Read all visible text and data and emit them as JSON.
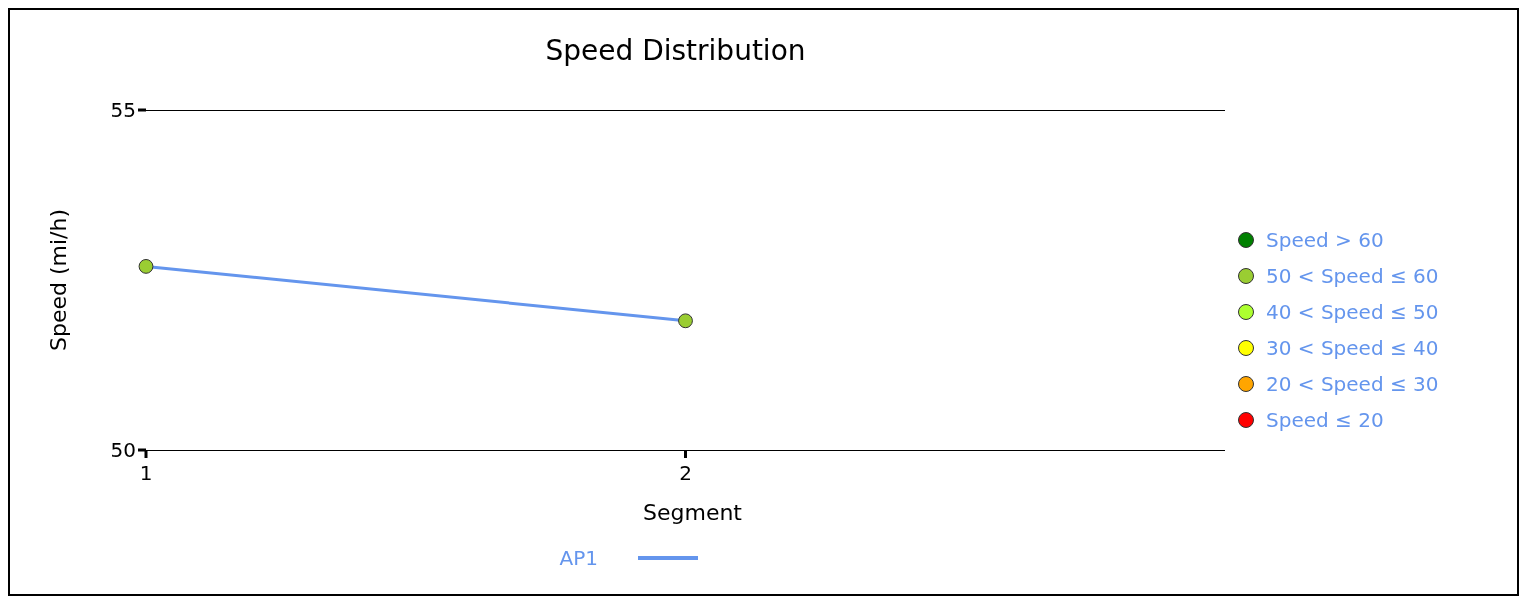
{
  "chart_data": {
    "type": "line",
    "title": "Speed Distribution",
    "xlabel": "Segment",
    "ylabel": "Speed (mi/h)",
    "x": [
      1,
      2
    ],
    "xlim": [
      1,
      3
    ],
    "xticks": [
      1,
      2
    ],
    "ylim": [
      50,
      55
    ],
    "yticks": [
      50,
      55
    ],
    "legend": "right",
    "marker": "circle",
    "series": [
      {
        "name": "AP1",
        "color": "#6495ed",
        "colors": [
          "#9acd32",
          "#9acd32"
        ],
        "values": [
          52.7,
          51.9
        ]
      },
      {
        "name": "Speed > 60",
        "type": "scatter",
        "color": "#008000",
        "values": [
          null,
          null
        ]
      },
      {
        "name": "50 < Speed ≤ 60",
        "type": "scatter",
        "color": "#9acd32",
        "values": [
          null,
          null
        ]
      },
      {
        "name": "40 < Speed ≤ 50",
        "type": "scatter",
        "color": "#adff2f",
        "values": [
          null,
          null
        ]
      },
      {
        "name": "30 < Speed ≤ 40",
        "type": "scatter",
        "color": "#ffff00",
        "values": [
          null,
          null
        ]
      },
      {
        "name": "20 < Speed ≤ 30",
        "type": "scatter",
        "color": "#ffa500",
        "values": [
          null,
          null
        ]
      },
      {
        "name": "Speed ≤ 20",
        "type": "scatter",
        "color": "#ff0000",
        "values": [
          null,
          null
        ]
      }
    ]
  }
}
